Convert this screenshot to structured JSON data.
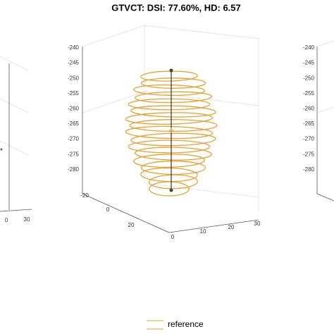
{
  "title": "GTVCT: DSI: 77.60%, HD: 6.57",
  "center_panel": {
    "z_ticks": [
      "-240",
      "-245",
      "-250",
      "-255",
      "-260",
      "-265",
      "-270",
      "-275",
      "-280"
    ],
    "y_ticks": [
      "-20",
      "0",
      "20"
    ],
    "x_ticks": [
      "0",
      "10",
      "20",
      "30"
    ]
  },
  "right_panel": {
    "z_ticks": [
      "-240",
      "-245",
      "-250",
      "-255",
      "-260",
      "-265",
      "-270",
      "-275",
      "-280"
    ]
  },
  "left_panel": {
    "x_ticks": [
      "0",
      "30"
    ]
  },
  "legend": {
    "label": "reference"
  }
}
